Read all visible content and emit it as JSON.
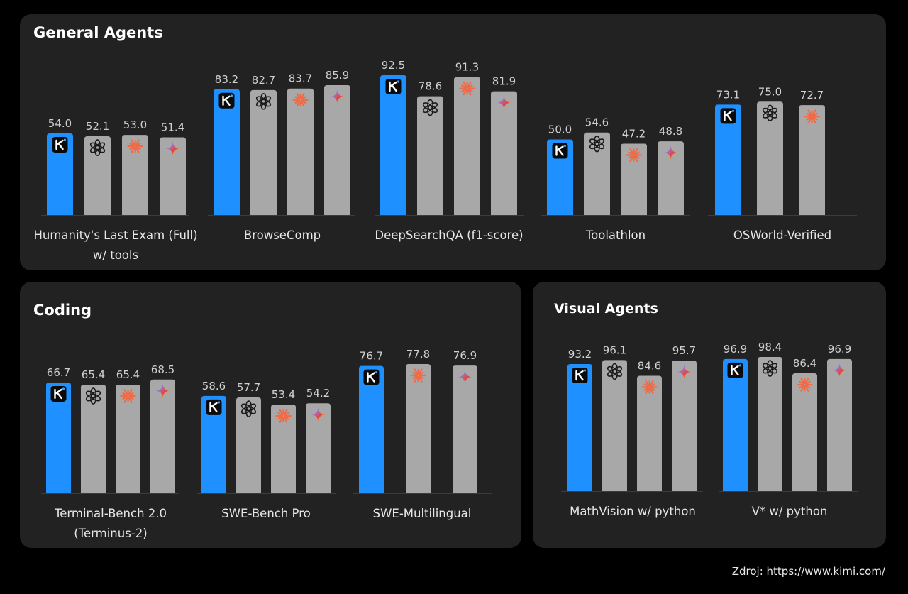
{
  "source_note": "Zdroj: https://www.kimi.com/",
  "colors": {
    "kimi_bar": "#1e90ff",
    "other_bar": "#a8a8a8",
    "panel_bg": "#222222",
    "value_text": "#d0d0d0",
    "label_text": "#e6e6e6",
    "claude_icon": "#f06a45"
  },
  "model_icons": [
    "kimi-icon",
    "openai-icon",
    "claude-icon",
    "gemini-icon"
  ],
  "chart_data": [
    {
      "type": "bar",
      "panel": "general",
      "title": "General Agents",
      "groups": [
        {
          "label": [
            "Humanity's Last Exam (Full)",
            "w/ tools"
          ],
          "values": [
            54.0,
            52.1,
            53.0,
            51.4
          ],
          "models": [
            "kimi",
            "openai",
            "claude",
            "gemini"
          ]
        },
        {
          "label": [
            "BrowseComp"
          ],
          "values": [
            83.2,
            82.7,
            83.7,
            85.9
          ],
          "models": [
            "kimi",
            "openai",
            "claude",
            "gemini"
          ]
        },
        {
          "label": [
            "DeepSearchQA (f1-score)"
          ],
          "values": [
            92.5,
            78.6,
            91.3,
            81.9
          ],
          "models": [
            "kimi",
            "openai",
            "claude",
            "gemini"
          ]
        },
        {
          "label": [
            "Toolathlon"
          ],
          "values": [
            50.0,
            54.6,
            47.2,
            48.8
          ],
          "models": [
            "kimi",
            "openai",
            "claude",
            "gemini"
          ]
        },
        {
          "label": [
            "OSWorld-Verified"
          ],
          "values": [
            73.1,
            75.0,
            72.7
          ],
          "models": [
            "kimi",
            "openai",
            "claude"
          ]
        }
      ]
    },
    {
      "type": "bar",
      "panel": "coding",
      "title": "Coding",
      "groups": [
        {
          "label": [
            "Terminal-Bench 2.0",
            "(Terminus-2)"
          ],
          "values": [
            66.7,
            65.4,
            65.4,
            68.5
          ],
          "models": [
            "kimi",
            "openai",
            "claude",
            "gemini"
          ]
        },
        {
          "label": [
            "SWE-Bench Pro"
          ],
          "values": [
            58.6,
            57.7,
            53.4,
            54.2
          ],
          "models": [
            "kimi",
            "openai",
            "claude",
            "gemini"
          ]
        },
        {
          "label": [
            "SWE-Multilingual"
          ],
          "values": [
            76.7,
            77.8,
            76.9
          ],
          "models": [
            "kimi",
            "claude",
            "gemini"
          ]
        }
      ]
    },
    {
      "type": "bar",
      "panel": "visual",
      "title": "Visual Agents",
      "groups": [
        {
          "label": [
            "MathVision w/ python"
          ],
          "values": [
            93.2,
            96.1,
            84.6,
            95.7
          ],
          "models": [
            "kimi",
            "openai",
            "claude",
            "gemini"
          ]
        },
        {
          "label": [
            "V* w/ python"
          ],
          "values": [
            96.9,
            98.4,
            86.4,
            96.9
          ],
          "models": [
            "kimi",
            "openai",
            "claude",
            "gemini"
          ]
        }
      ]
    }
  ]
}
